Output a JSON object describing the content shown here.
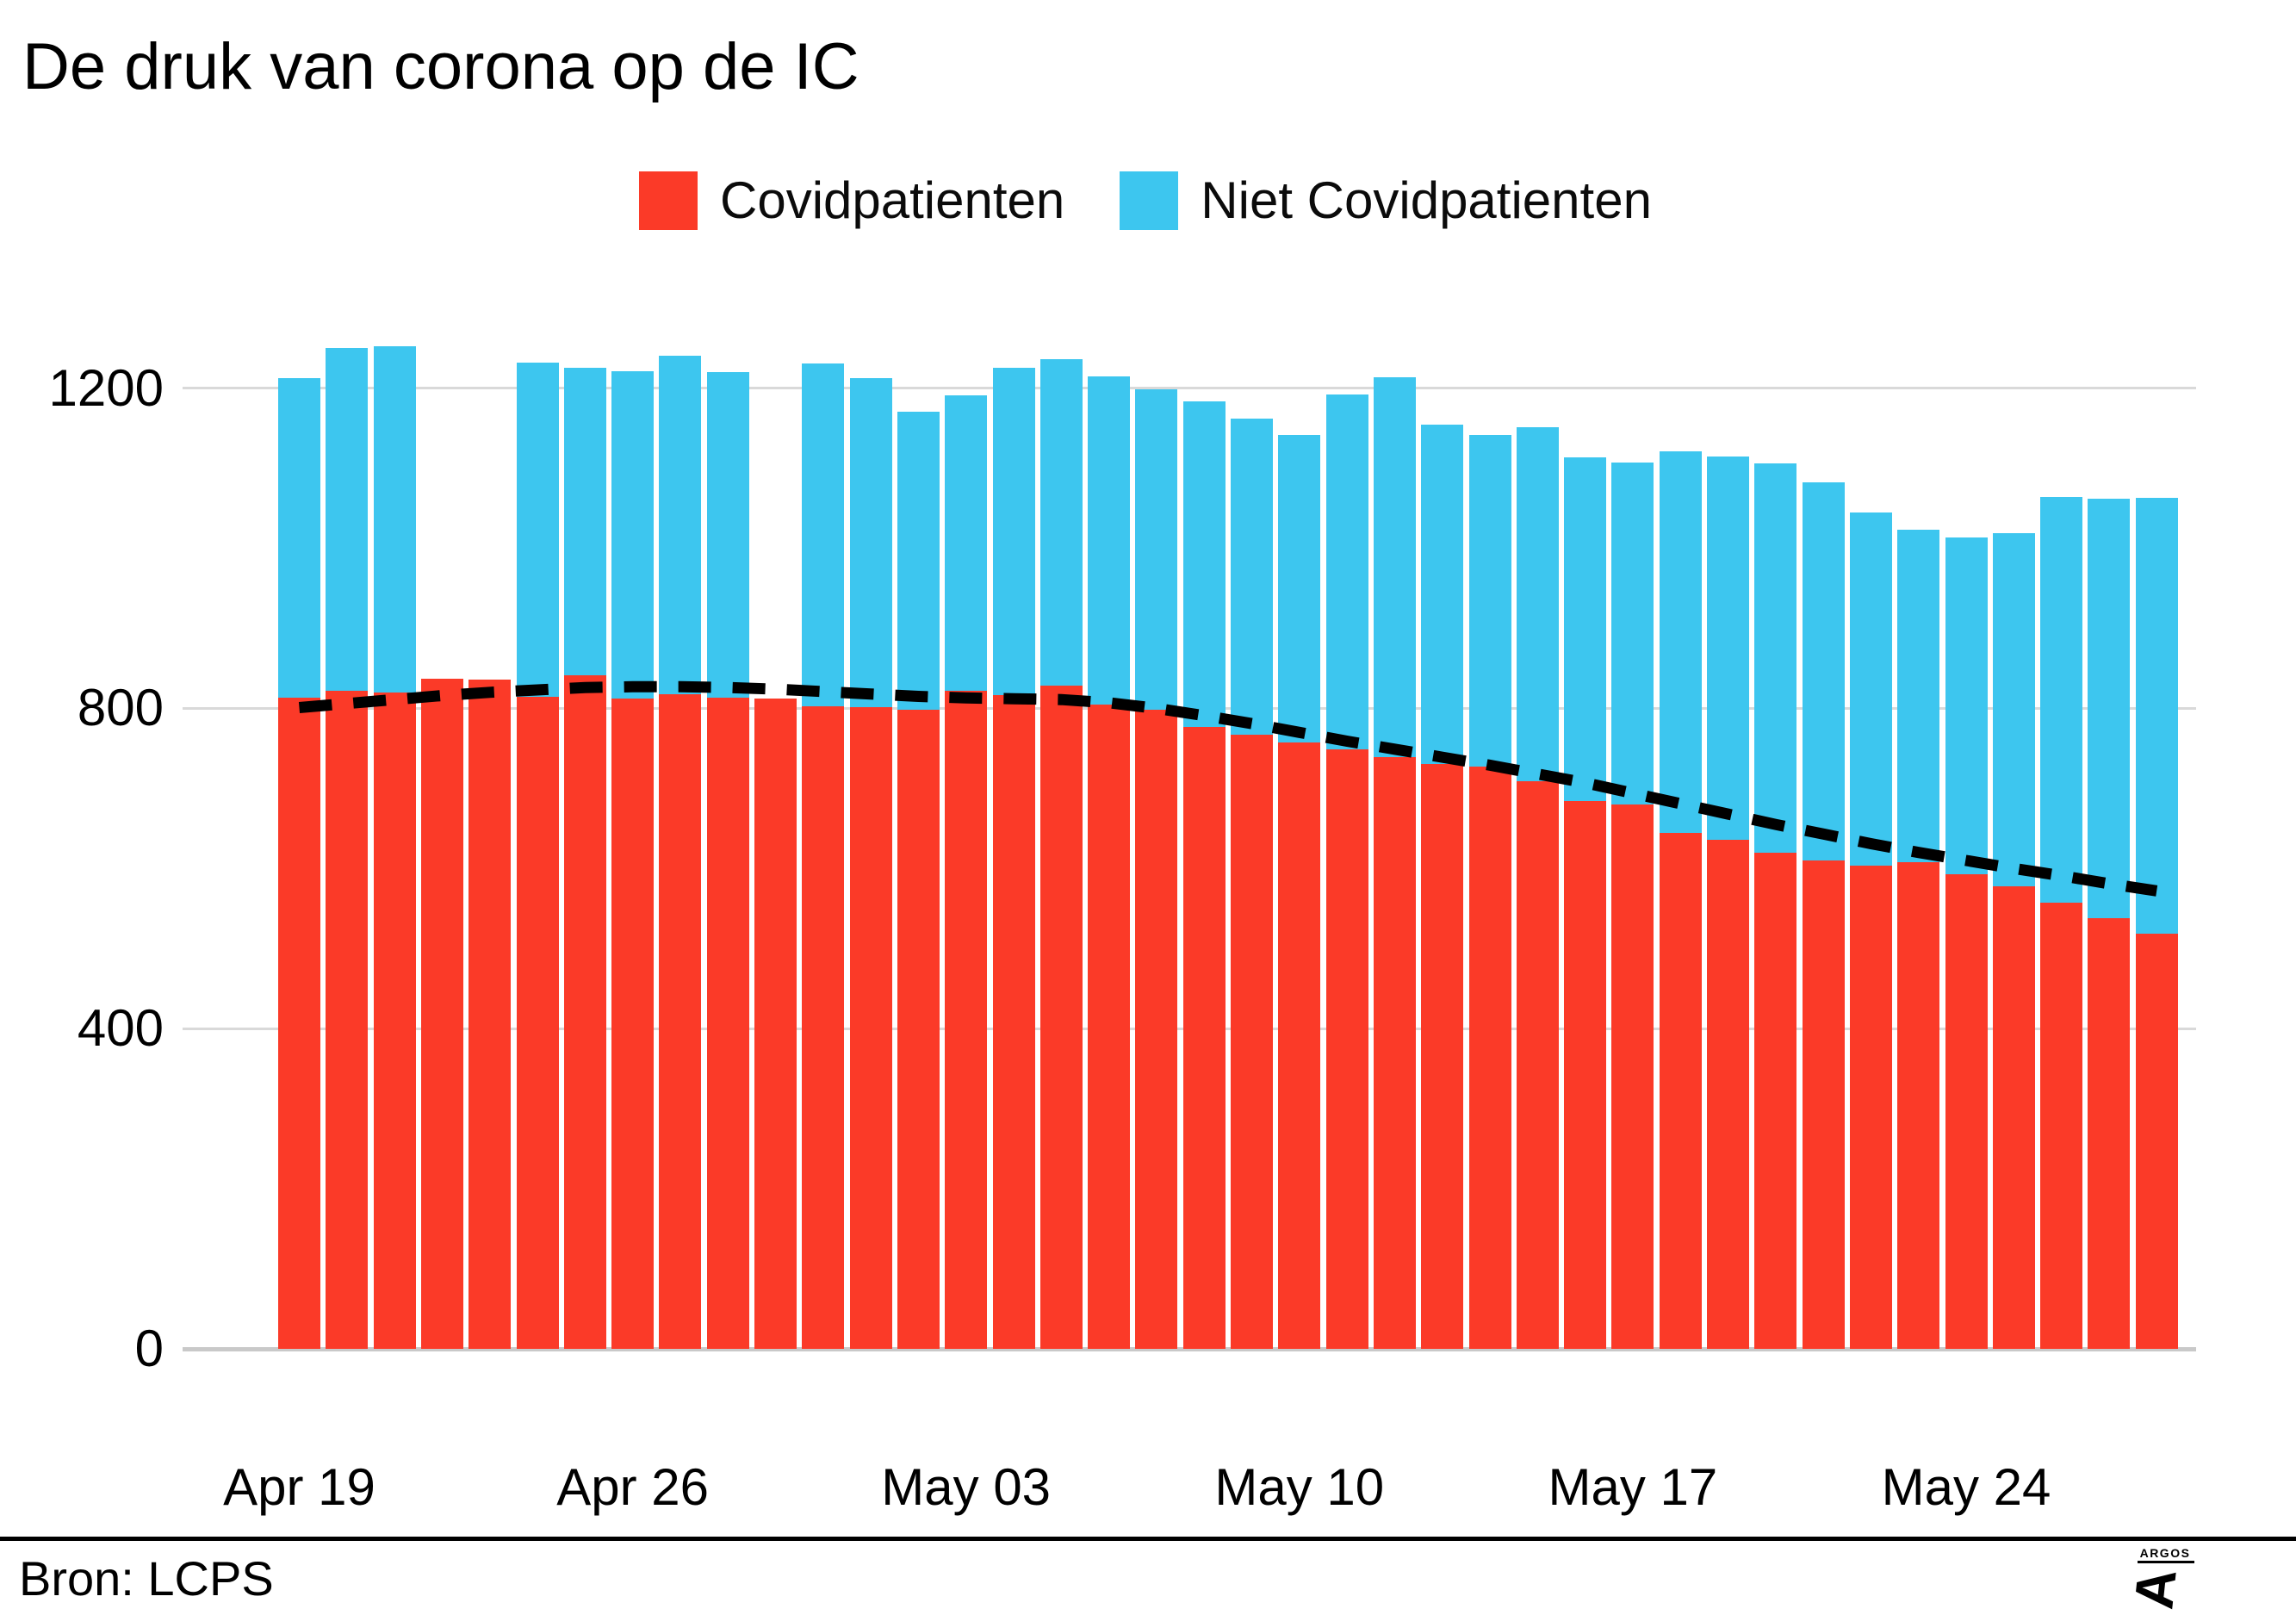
{
  "title": "De druk van corona op de IC",
  "legend": {
    "items": [
      {
        "label": "Covidpatienten",
        "color": "#FB3A28"
      },
      {
        "label": "Niet Covidpatienten",
        "color": "#3DC6EF"
      }
    ]
  },
  "footer": {
    "source": "Bron: LCPS",
    "logo_text": "ARGOS"
  },
  "chart_data": {
    "type": "bar",
    "stacked": true,
    "title": "De druk van corona op de IC",
    "xlabel": "",
    "ylabel": "",
    "ylim": [
      0,
      1300
    ],
    "grid": "horizontal",
    "legend_position": "top",
    "yticks": [
      {
        "value": 0,
        "label": "0"
      },
      {
        "value": 400,
        "label": "400"
      },
      {
        "value": 800,
        "label": "800"
      },
      {
        "value": 1200,
        "label": "1200"
      }
    ],
    "xticks": [
      {
        "index": 0,
        "label": "Apr 19"
      },
      {
        "index": 7,
        "label": "Apr 26"
      },
      {
        "index": 14,
        "label": "May 03"
      },
      {
        "index": 21,
        "label": "May 10"
      },
      {
        "index": 28,
        "label": "May 17"
      },
      {
        "index": 35,
        "label": "May 24"
      }
    ],
    "categories": [
      "Apr 19",
      "Apr 20",
      "Apr 21",
      "Apr 22",
      "Apr 23",
      "Apr 24",
      "Apr 25",
      "Apr 26",
      "Apr 27",
      "Apr 28",
      "Apr 29",
      "Apr 30",
      "May 01",
      "May 02",
      "May 03",
      "May 04",
      "May 05",
      "May 06",
      "May 07",
      "May 08",
      "May 09",
      "May 10",
      "May 11",
      "May 12",
      "May 13",
      "May 14",
      "May 15",
      "May 16",
      "May 17",
      "May 18",
      "May 19",
      "May 20",
      "May 21",
      "May 22",
      "May 23",
      "May 24",
      "May 25",
      "May 26",
      "May 27",
      "May 28"
    ],
    "series": [
      {
        "name": "Covidpatienten",
        "color": "#FB3A28",
        "values": [
          813,
          822,
          820,
          837,
          836,
          814,
          841,
          812,
          818,
          813,
          812,
          803,
          802,
          798,
          822,
          817,
          828,
          805,
          798,
          777,
          767,
          757,
          749,
          739,
          731,
          727,
          709,
          684,
          680,
          644,
          636,
          620,
          610,
          604,
          608,
          593,
          578,
          557,
          538,
          519
        ]
      },
      {
        "name": "Niet Covidpatienten",
        "color": "#3DC6EF",
        "values": [
          399,
          428,
          432,
          null,
          null,
          418,
          384,
          409,
          422,
          407,
          null,
          428,
          411,
          372,
          369,
          408,
          408,
          410,
          401,
          406,
          395,
          384,
          443,
          475,
          423,
          414,
          442,
          429,
          427,
          477,
          479,
          486,
          472,
          441,
          415,
          420,
          441,
          507,
          524,
          544
        ]
      }
    ],
    "trend_line": {
      "name": "trend",
      "style": "dashed",
      "color": "#000000",
      "values": [
        801,
        806,
        811,
        816,
        820,
        823,
        826,
        827,
        827,
        826,
        824,
        821,
        818,
        815,
        813,
        812,
        811,
        807,
        800,
        791,
        781,
        770,
        759,
        749,
        739,
        729,
        718,
        707,
        694,
        681,
        668,
        655,
        643,
        631,
        620,
        610,
        600,
        591,
        581,
        572
      ]
    }
  }
}
